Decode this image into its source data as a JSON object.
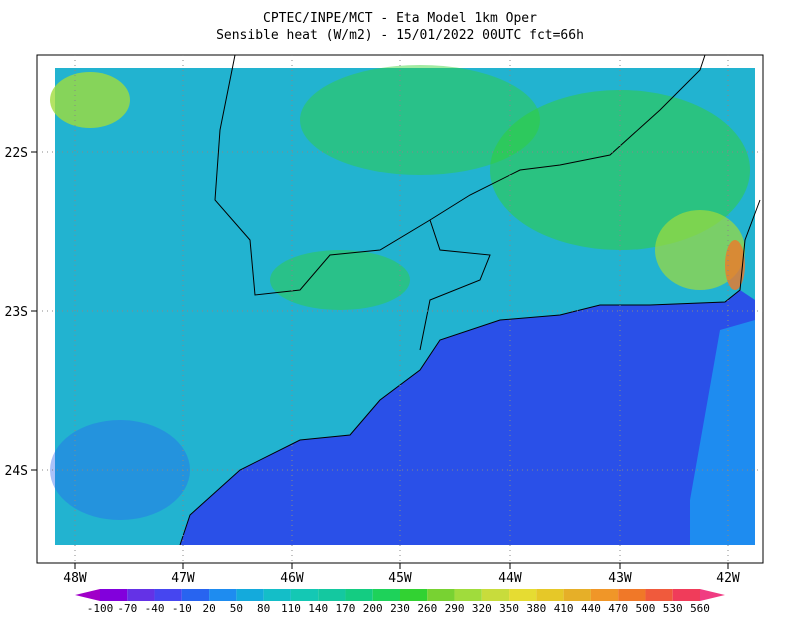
{
  "title": [
    "CPTEC/INPE/MCT -  Eta Model 1km Oper",
    "Sensible heat (W/m2) - 15/01/2022 00UTC fct=66h"
  ],
  "latitude_labels": [
    "22S",
    "23S",
    "24S"
  ],
  "longitude_labels": [
    "48W",
    "47W",
    "46W",
    "45W",
    "44W",
    "43W",
    "42W"
  ],
  "colorbar": {
    "levels": [
      -100,
      -70,
      -40,
      -10,
      20,
      50,
      80,
      110,
      140,
      170,
      200,
      230,
      260,
      290,
      320,
      350,
      380,
      410,
      440,
      470,
      500,
      530,
      560
    ],
    "colors": [
      "#a000c8",
      "#8200dc",
      "#6432e6",
      "#4646f0",
      "#2864f0",
      "#1e8cf0",
      "#14aadc",
      "#14bec8",
      "#14c8b4",
      "#14c8a0",
      "#14cc82",
      "#1ed25a",
      "#32d232",
      "#78d232",
      "#a0dc3c",
      "#c8dc3c",
      "#e6dc32",
      "#e6c828",
      "#e6af28",
      "#f09628",
      "#f07828",
      "#f05a3c",
      "#f03c5a",
      "#f03c82"
    ]
  }
}
